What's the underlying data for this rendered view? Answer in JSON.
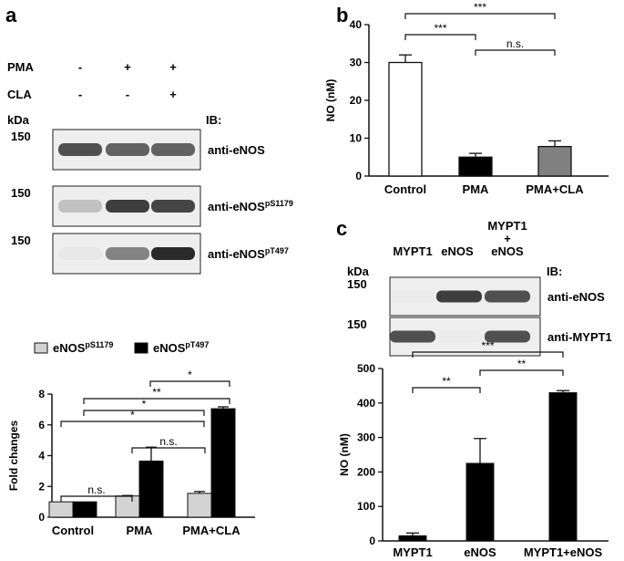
{
  "panels": {
    "a": "a",
    "b": "b",
    "c": "c"
  },
  "blot_a": {
    "conditions": [
      {
        "name": "PMA",
        "values": [
          "-",
          "+",
          "+"
        ]
      },
      {
        "name": "CLA",
        "values": [
          "-",
          "-",
          "+"
        ]
      }
    ],
    "kda": "kDa",
    "ib": "IB:",
    "rows": [
      {
        "marker": "150",
        "label": "anti-eNOS",
        "sup": "",
        "intensity": [
          0.85,
          0.8,
          0.8
        ]
      },
      {
        "marker": "150",
        "label": "anti-eNOS",
        "sup": "pS1179",
        "intensity": [
          0.45,
          0.9,
          0.88
        ]
      },
      {
        "marker": "150",
        "label": "anti-eNOS",
        "sup": "pT497",
        "intensity": [
          0.15,
          0.7,
          0.95
        ]
      }
    ]
  },
  "blot_c": {
    "lanes": [
      "MYPT1",
      "eNOS",
      "MYPT1",
      "+",
      "eNOS"
    ],
    "kda": "kDa",
    "ib": "IB:",
    "rows": [
      {
        "marker": "150",
        "label": "anti-eNOS",
        "intensity": [
          0.05,
          0.9,
          0.85
        ]
      },
      {
        "marker": "150",
        "label": "anti-MYPT1",
        "intensity": [
          0.85,
          0.05,
          0.85
        ]
      }
    ]
  },
  "chart_data": [
    {
      "id": "chart-a",
      "type": "bar",
      "categories": [
        "Control",
        "PMA",
        "PMA+CLA"
      ],
      "series": [
        {
          "name": "eNOS",
          "name_sup": "pS1179",
          "values": [
            1.0,
            1.38,
            1.55
          ],
          "errors": [
            0.0,
            0.03,
            0.12
          ],
          "color": "#d3d3d3"
        },
        {
          "name": "eNOS",
          "name_sup": "pT497",
          "values": [
            1.0,
            3.65,
            7.05
          ],
          "errors": [
            0.0,
            0.9,
            0.12
          ],
          "color": "#000000"
        }
      ],
      "ylabel": "Fold changes",
      "ylim": [
        0,
        8
      ],
      "yticks": [
        "0",
        "2",
        "4",
        "6",
        "8"
      ],
      "annotations": [
        "n.s.",
        "n.s.",
        "*",
        "*",
        "**",
        "*"
      ]
    },
    {
      "id": "chart-b",
      "type": "bar",
      "categories": [
        "Control",
        "PMA",
        "PMA+CLA"
      ],
      "values": [
        30.0,
        5.0,
        7.8
      ],
      "errors": [
        2.0,
        1.0,
        1.5
      ],
      "colors": [
        "#ffffff",
        "#000000",
        "#808080"
      ],
      "ylabel": "NO (nM)",
      "ylim": [
        0,
        40
      ],
      "yticks": [
        "0",
        "10",
        "20",
        "30",
        "40"
      ],
      "annotations": [
        "***",
        "***",
        "n.s."
      ]
    },
    {
      "id": "chart-c",
      "type": "bar",
      "categories": [
        "MYPT1",
        "eNOS",
        "MYPT1+eNOS"
      ],
      "values": [
        15,
        225,
        430
      ],
      "errors": [
        8,
        72,
        6
      ],
      "colors": [
        "#000000",
        "#000000",
        "#000000"
      ],
      "ylabel": "NO (nM)",
      "ylim": [
        0,
        500
      ],
      "yticks": [
        "0",
        "100",
        "200",
        "300",
        "400",
        "500"
      ],
      "annotations": [
        "***",
        "**",
        "**"
      ]
    }
  ]
}
